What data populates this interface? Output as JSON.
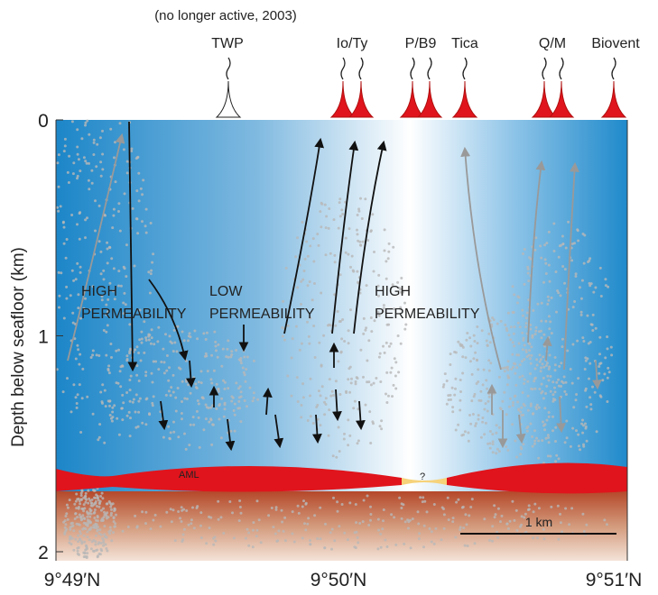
{
  "annotation": "(no longer active, 2003)",
  "vents": [
    "TWP",
    "Io/Ty",
    "P/B9",
    "Tica",
    "Q/M",
    "Biovent"
  ],
  "y_axis": {
    "label": "Depth below seafloor (km)",
    "ylim": [
      0,
      2
    ],
    "ticks": [
      0,
      1,
      2
    ]
  },
  "x_axis": {
    "ticks": [
      "9°49′N",
      "9°50′N",
      "9°51′N"
    ]
  },
  "regions": [
    {
      "line1": "HIGH",
      "line2": "PERMEABILITY"
    },
    {
      "line1": "LOW",
      "line2": "PERMEABILITY"
    },
    {
      "line1": "HIGH",
      "line2": "PERMEABILITY"
    }
  ],
  "aml_label": "AML",
  "unknown": "?",
  "scale_bar": "1 km"
}
